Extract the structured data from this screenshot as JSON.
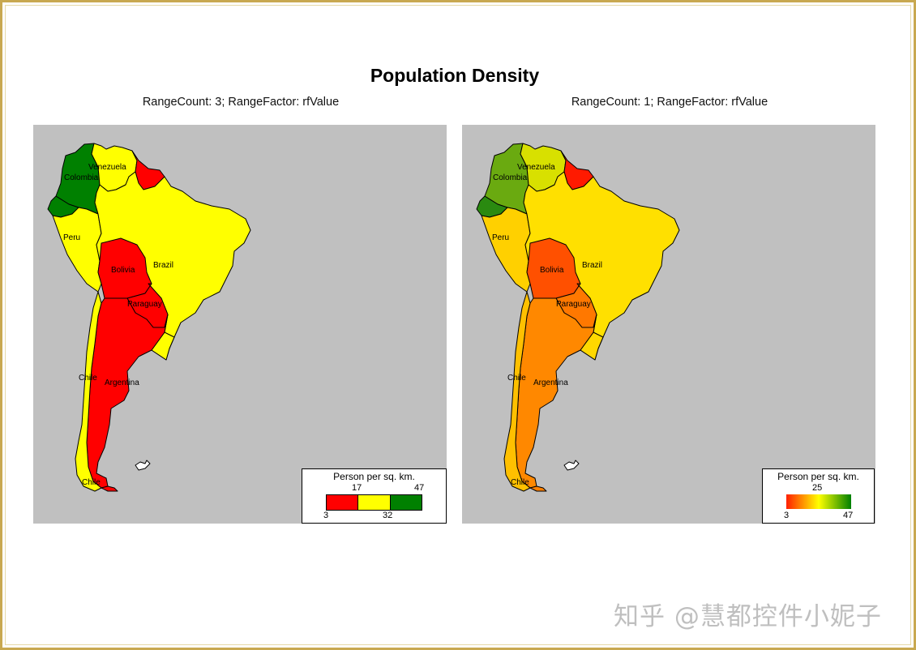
{
  "title": "Population Density",
  "colors": {
    "sea": "#c0c0c0",
    "frame": "#c8a850",
    "low": "#ff0000",
    "mid": "#ffff00",
    "high": "#008000"
  },
  "panels": [
    {
      "subtitle": "RangeCount: 3; RangeFactor: rfValue",
      "legend": {
        "title": "Person per sq. km.",
        "type": "stepped",
        "top_labels": [
          "17",
          "47"
        ],
        "bottom_labels": [
          "3",
          "32"
        ],
        "steps": [
          "#ff0000",
          "#ffff00",
          "#008000"
        ]
      },
      "country_colors": {
        "colombia": "#008000",
        "venezuela": "#ffff00",
        "guyanas": "#ff0000",
        "ecuador": "#008000",
        "peru": "#ffff00",
        "brazil": "#ffff00",
        "bolivia": "#ff0000",
        "paraguay": "#ff0000",
        "uruguay": "#ffff00",
        "argentina": "#ff0000",
        "chile": "#ffff00",
        "tierra": "#ff0000"
      }
    },
    {
      "subtitle": "RangeCount: 1; RangeFactor: rfValue",
      "legend": {
        "title": "Person per sq. km.",
        "type": "gradient",
        "top_labels": [
          "25"
        ],
        "bottom_labels": [
          "3",
          "47"
        ],
        "steps": [
          "#ff2000",
          "#ffff00",
          "#008000"
        ]
      },
      "country_colors": {
        "colombia": "#6aaa10",
        "venezuela": "#d8e000",
        "guyanas": "#ff1a00",
        "ecuador": "#2a8a10",
        "peru": "#ffd000",
        "brazil": "#ffe000",
        "bolivia": "#ff5000",
        "paraguay": "#ff7800",
        "uruguay": "#ffd800",
        "argentina": "#ff8800",
        "chile": "#ffc000",
        "tierra": "#ff8000"
      }
    }
  ],
  "country_labels": {
    "colombia": "Colombia",
    "venezuela": "Venezuela",
    "peru": "Peru",
    "brazil": "Brazil",
    "bolivia": "Bolivia",
    "paraguay": "Paraguay",
    "argentina": "Argentina",
    "chile_north": "Chile",
    "chile_south": "Chile"
  },
  "watermark": "知乎 @慧都控件小妮子"
}
